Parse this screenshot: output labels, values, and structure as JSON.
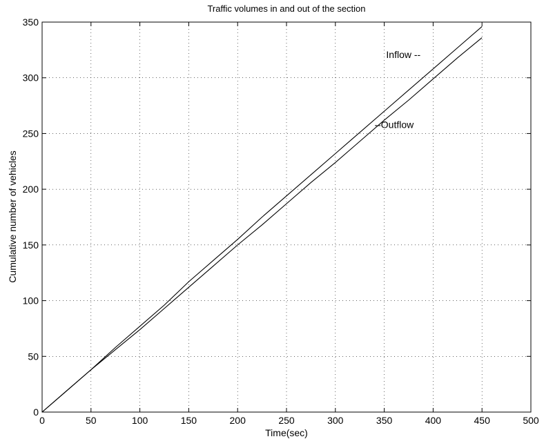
{
  "chart_data": {
    "type": "line",
    "title": "Traffic volumes in and out of the section",
    "xlabel": "Time(sec)",
    "ylabel": "Cumulative number of vehicles",
    "xlim": [
      0,
      500
    ],
    "ylim": [
      0,
      350
    ],
    "xticks": [
      0,
      50,
      100,
      150,
      200,
      250,
      300,
      350,
      400,
      450,
      500
    ],
    "yticks": [
      0,
      50,
      100,
      150,
      200,
      250,
      300,
      350
    ],
    "grid": true,
    "series": [
      {
        "x": [
          0,
          25,
          50,
          75,
          100,
          125,
          150,
          175,
          200,
          225,
          250,
          275,
          300,
          325,
          350,
          375,
          400,
          425,
          450
        ],
        "values": [
          0,
          19,
          38,
          58,
          77,
          96,
          117,
          136,
          155,
          175,
          194,
          213,
          232,
          251,
          270,
          289,
          308,
          327,
          346
        ]
      },
      {
        "x": [
          0,
          25,
          50,
          75,
          100,
          125,
          150,
          175,
          200,
          225,
          250,
          275,
          300,
          325,
          350,
          375,
          400,
          425,
          450
        ],
        "values": [
          0,
          19,
          38,
          56,
          74,
          93,
          112,
          131,
          150,
          168,
          187,
          206,
          224,
          243,
          262,
          280,
          299,
          318,
          336
        ]
      }
    ],
    "annotations": [
      {
        "text": "Inflow --",
        "x": 352,
        "y": 321
      },
      {
        "text": "--Outflow",
        "x": 340,
        "y": 258
      }
    ]
  }
}
